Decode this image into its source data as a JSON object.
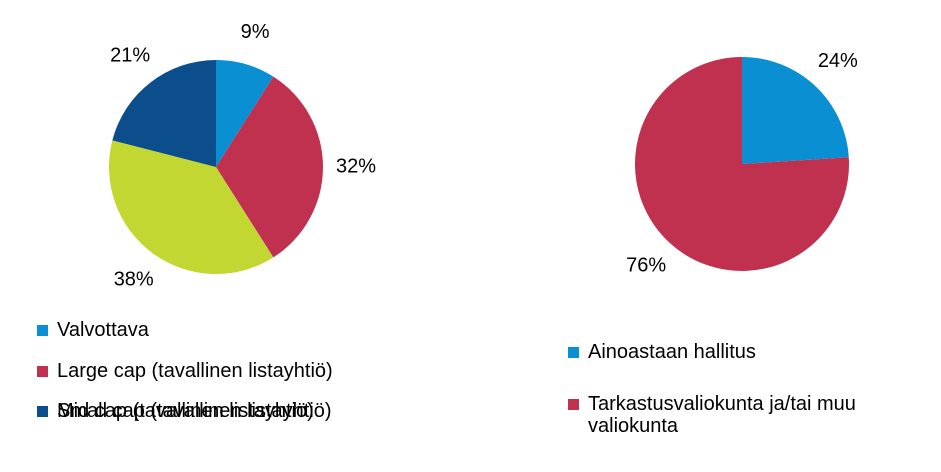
{
  "chart_data": [
    {
      "type": "pie",
      "categories": [
        "Valvottava",
        "Large cap (tavallinen listayhtiö)",
        "Mid cap (tavallinen listayhtiö)",
        "Small cap (tavallinen listayhtiö)"
      ],
      "values": [
        9,
        32,
        38,
        21
      ],
      "value_labels": [
        "9%",
        "32%",
        "38%",
        "21%"
      ],
      "colors": [
        "#0b8fd3",
        "#c0304f",
        "#c3d733",
        "#0c4d8c"
      ]
    },
    {
      "type": "pie",
      "categories": [
        "Ainoastaan hallitus",
        "Tarkastusvaliokunta ja/tai muu valiokunta"
      ],
      "values": [
        24,
        76
      ],
      "value_labels": [
        "24%",
        "76%"
      ],
      "colors": [
        "#0b8fd3",
        "#c0304f"
      ]
    }
  ]
}
